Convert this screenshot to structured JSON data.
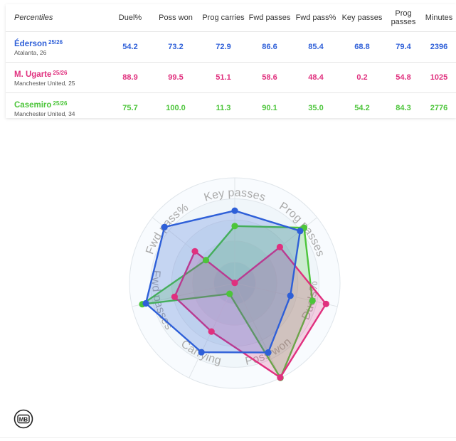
{
  "table": {
    "header": {
      "first": "Percentiles",
      "columns": [
        "Duel%",
        "Poss won",
        "Prog carries",
        "Fwd passes",
        "Fwd pass%",
        "Key passes",
        "Prog passes",
        "Minutes"
      ]
    },
    "rows": [
      {
        "name": "Éderson",
        "season": "25/26",
        "meta": "Atalanta, 26",
        "color": "#2e5fd8",
        "values": [
          "54.2",
          "73.2",
          "72.9",
          "86.6",
          "85.4",
          "68.8",
          "79.4",
          "2396"
        ]
      },
      {
        "name": "M. Ugarte",
        "season": "25/26",
        "meta": "Manchester United, 25",
        "color": "#e0307e",
        "values": [
          "88.9",
          "99.5",
          "51.1",
          "58.6",
          "48.4",
          "0.2",
          "54.8",
          "1025"
        ]
      },
      {
        "name": "Casemiro",
        "season": "25/26",
        "meta": "Manchester United, 34",
        "color": "#4cc53a",
        "values": [
          "75.7",
          "100.0",
          "11.3",
          "90.1",
          "35.0",
          "54.2",
          "84.3",
          "2776"
        ]
      }
    ]
  },
  "chart_data": {
    "type": "radar",
    "axes": [
      "Key passes",
      "Prog passes",
      "Duels%",
      "Poss won",
      "Carrying",
      "Fwd passes",
      "Fwd pass%"
    ],
    "range": [
      0,
      100
    ],
    "series": [
      {
        "name": "Éderson",
        "color": "#2e5fd8",
        "values": [
          68.8,
          79.4,
          54.2,
          73.2,
          72.9,
          86.6,
          85.4
        ]
      },
      {
        "name": "M. Ugarte",
        "color": "#e0307e",
        "values": [
          0.2,
          54.8,
          88.9,
          99.5,
          51.1,
          58.6,
          48.4
        ]
      },
      {
        "name": "Casemiro",
        "color": "#4cc53a",
        "values": [
          54.2,
          84.3,
          75.7,
          100.0,
          11.3,
          90.1,
          35.0
        ]
      }
    ]
  },
  "logo": {
    "text": "MB"
  }
}
